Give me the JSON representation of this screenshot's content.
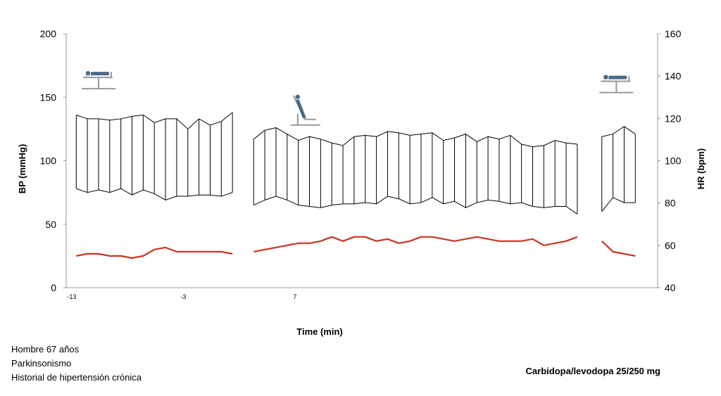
{
  "chart_data": {
    "type": "line",
    "title": "",
    "xlabel": "Time (min)",
    "ylabel_left": "BP (mmHg)",
    "ylabel_right": "HR (bpm)",
    "ylim_left": [
      0,
      200
    ],
    "ylim_right": [
      40,
      160
    ],
    "yticks_left": [
      "0",
      "50",
      "100",
      "150",
      "200"
    ],
    "yticks_right": [
      "40",
      "60",
      "80",
      "100",
      "120",
      "140",
      "160"
    ],
    "xlim": [
      -13.5,
      39.5
    ],
    "xticks": [
      {
        "value": -13,
        "label": "-13"
      },
      {
        "value": -3,
        "label": "-3"
      },
      {
        "value": 7,
        "label": "7"
      }
    ],
    "grid": false,
    "series": [
      {
        "segment": "supine",
        "x": [
          -12.6,
          -11.6,
          -10.6,
          -9.6,
          -8.6,
          -7.6,
          -6.6,
          -5.6,
          -4.6,
          -3.6,
          -2.6,
          -1.6,
          -0.6,
          0.4,
          1.4
        ],
        "systolic": [
          136,
          133,
          133,
          132,
          133,
          135,
          136,
          130,
          133,
          133,
          125,
          133,
          128,
          131,
          138
        ],
        "diastolic": [
          78,
          75,
          77,
          75,
          78,
          73,
          77,
          74,
          69,
          72,
          72,
          73,
          73,
          72,
          75
        ],
        "hr": [
          55,
          56,
          56,
          55,
          55,
          54,
          55,
          58,
          59,
          57,
          57,
          57,
          57,
          57,
          56
        ]
      },
      {
        "segment": "tilt",
        "x": [
          3.3,
          4.3,
          5.3,
          6.3,
          7.3,
          8.3,
          9.3,
          10.3,
          11.3,
          12.3,
          13.3,
          14.3,
          15.3,
          16.3,
          17.3,
          18.3,
          19.3,
          20.3,
          21.3,
          22.3,
          23.3,
          24.3,
          25.3,
          26.3,
          27.3,
          28.3,
          29.3,
          30.3,
          31.3,
          32.3
        ],
        "systolic": [
          117,
          124,
          126,
          121,
          116,
          119,
          117,
          114,
          112,
          119,
          120,
          119,
          123,
          122,
          120,
          121,
          122,
          116,
          118,
          121,
          115,
          119,
          117,
          120,
          113,
          111,
          112,
          116,
          114,
          113
        ],
        "diastolic": [
          65,
          69,
          72,
          69,
          65,
          64,
          63,
          65,
          66,
          66,
          67,
          66,
          72,
          70,
          66,
          67,
          71,
          66,
          68,
          63,
          67,
          69,
          68,
          66,
          67,
          64,
          63,
          64,
          64,
          58
        ],
        "hr": [
          57,
          58,
          59,
          60,
          61,
          61,
          62,
          64,
          62,
          64,
          64,
          62,
          63,
          61,
          62,
          64,
          64,
          63,
          62,
          63,
          64,
          63,
          62,
          62,
          62,
          63,
          60,
          61,
          62,
          64
        ]
      },
      {
        "segment": "supine-recovery",
        "x": [
          34.5,
          35.5,
          36.5,
          37.5
        ],
        "systolic": [
          119,
          121,
          127,
          121
        ],
        "diastolic": [
          60,
          71,
          67,
          67
        ],
        "hr": [
          62,
          57,
          56,
          55
        ]
      }
    ],
    "colors": {
      "bp": "#000000",
      "hr": "#cc3322",
      "axis": "#999999",
      "icon": "#4a6a85",
      "stand": "#999999"
    },
    "icons": [
      {
        "name": "supine-bed-icon",
        "x": -10.6,
        "y": 170
      },
      {
        "name": "tilt-table-icon",
        "x": 7.5,
        "y": 137
      },
      {
        "name": "supine-bed-icon",
        "x": 35.8,
        "y": 167
      }
    ]
  },
  "notes": {
    "patient": [
      "Hombre 67 años",
      "Parkinsonismo",
      "Historial de hipertensión crónica"
    ],
    "drug": "Carbidopa/levodopa 25/250 mg"
  }
}
